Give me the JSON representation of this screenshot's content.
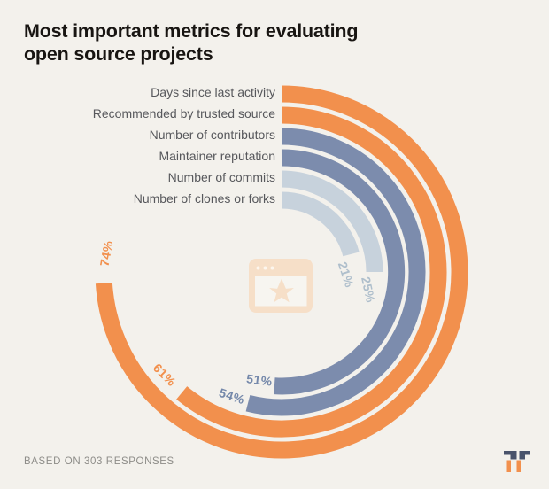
{
  "title": {
    "line1": "Most important metrics for evaluating",
    "line2": "open source projects"
  },
  "footer": {
    "note": "BASED ON 303 RESPONSES"
  },
  "chart_data": {
    "type": "radial-bar",
    "title": "Most important metrics for evaluating open source projects",
    "categories": [
      "Days since last activity",
      "Recommended by trusted source",
      "Number of contributors",
      "Maintainer reputation",
      "Number of commits",
      "Number of clones or forks"
    ],
    "values": [
      74,
      61,
      54,
      51,
      25,
      21
    ],
    "unit": "%",
    "value_labels": [
      "74%",
      "61%",
      "54%",
      "51%",
      "25%",
      "21%"
    ],
    "full_circle_pct": 100,
    "start_angle_deg": 0,
    "direction": "clockwise",
    "arc_colors": [
      "#F2904D",
      "#F2904D",
      "#7C8CAD",
      "#7C8CAD",
      "#C7D2DC",
      "#C7D2DC"
    ],
    "value_label_colors": [
      "#F2904D",
      "#F2904D",
      "#7488AA",
      "#7488AA",
      "#AFBFCC",
      "#AFBFCC"
    ],
    "category_label_color": "#57585C",
    "note": "BASED ON 303 RESPONSES",
    "center_icon": "browser-window-with-star",
    "legend_position": "none",
    "grid": false
  },
  "colors": {
    "background": "#F3F1EC",
    "title_text": "#181512",
    "note_text": "#8E8D89",
    "icon_peach": "#F6DFC8",
    "icon_content": "#F7F5F0",
    "icon_dot": "#FCF6EE",
    "logo_dark": "#49536B",
    "logo_orange": "#F2904D"
  }
}
